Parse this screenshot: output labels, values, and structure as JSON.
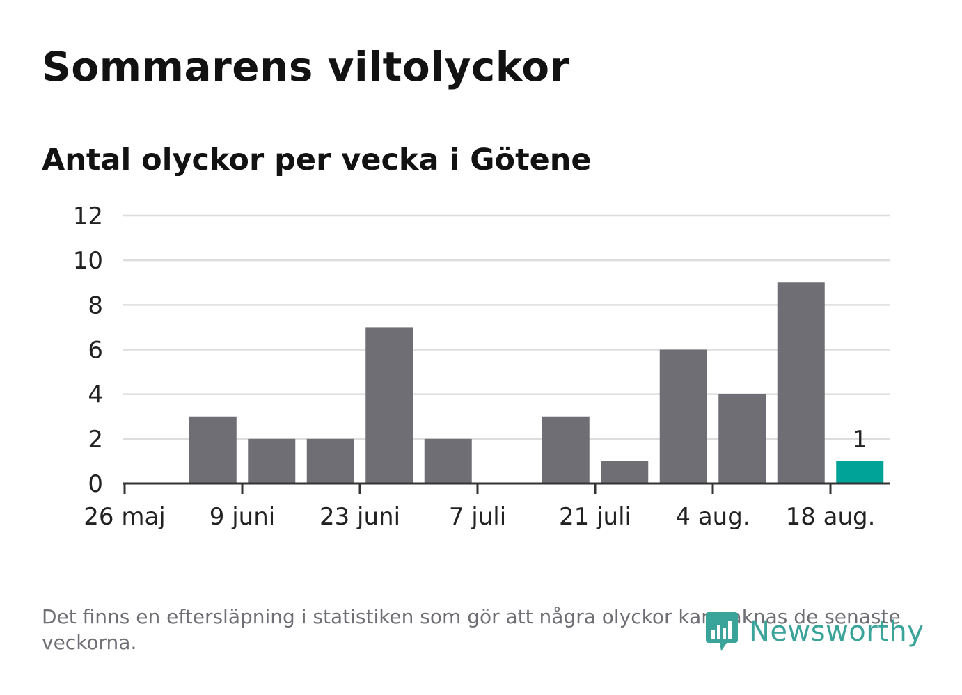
{
  "chart_data": {
    "type": "bar",
    "title": "Sommarens viltolyckor",
    "subtitle": "Antal olyckor per vecka i Götene",
    "x": [
      "2024-05-26",
      "2024-06-02",
      "2024-06-09",
      "2024-06-16",
      "2024-06-23",
      "2024-06-30",
      "2024-07-07",
      "2024-07-14",
      "2024-07-21",
      "2024-07-28",
      "2024-08-04",
      "2024-08-11",
      "2024-08-18"
    ],
    "values": [
      0,
      3,
      2,
      2,
      7,
      2,
      0,
      3,
      1,
      6,
      4,
      9,
      1
    ],
    "x_tick_labels": [
      "26 maj",
      "9 juni",
      "23 juni",
      "7 juli",
      "21 juli",
      "4 aug.",
      "18 aug."
    ],
    "y_ticks": [
      "0",
      "2",
      "4",
      "6",
      "8",
      "10",
      "12"
    ],
    "ylim": [
      0,
      12
    ],
    "grid": true,
    "data_labels": [
      "1"
    ],
    "bar_color": "#6f6e74",
    "highlight_color": "#00a397",
    "gridline_color": "#dddddd",
    "axis_color": "#333333"
  },
  "footnote": "Det finns en eftersläpning i statistiken som gör att några olyckor kan saknas de senaste veckorna.",
  "logo": {
    "text": "Newsworthy",
    "icon": "newsworthy-logo-icon",
    "color": "#3aa39a"
  }
}
